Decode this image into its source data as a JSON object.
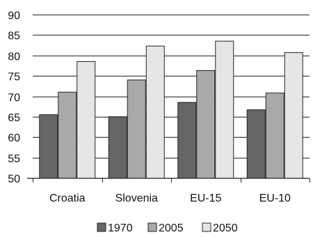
{
  "chart_data": {
    "type": "bar",
    "categories": [
      "Croatia",
      "Slovenia",
      "EU-15",
      "EU-10"
    ],
    "series": [
      {
        "name": "1970",
        "values": [
          65.5,
          65.0,
          68.5,
          66.7
        ],
        "color": "#666666"
      },
      {
        "name": "2005",
        "values": [
          71.0,
          74.0,
          76.3,
          70.8
        ],
        "color": "#a9a9a9"
      },
      {
        "name": "2050",
        "values": [
          78.5,
          82.3,
          83.5,
          80.7
        ],
        "color": "#e6e6e6"
      }
    ],
    "ylim": [
      50,
      90
    ],
    "yticks": [
      "50",
      "55",
      "60",
      "65",
      "70",
      "75",
      "80",
      "85",
      "90"
    ],
    "grid": true,
    "legend_position": "bottom",
    "bar_outline_color": "#222222"
  }
}
